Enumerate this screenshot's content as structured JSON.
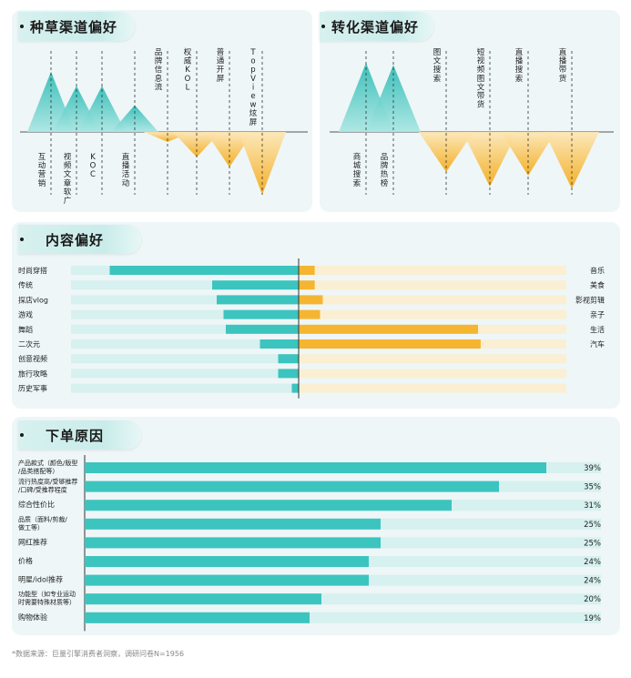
{
  "sections": {
    "seeding": {
      "title": "种草渠道偏好"
    },
    "conversion": {
      "title": "转化渠道偏好"
    },
    "content": {
      "title": "内容偏好"
    },
    "order": {
      "title": "下单原因"
    }
  },
  "footer": "*数据来源：巨量引擎消费者洞察，调研问卷N=1956",
  "chart_data": [
    {
      "type": "area",
      "title": "种草渠道偏好",
      "categories": [
        "互动营销",
        "视频文章软广",
        "KOC",
        "直播活动",
        "品牌信息流",
        "权威KOL",
        "普通开屏",
        "TopView炫屏"
      ],
      "values": [
        0.72,
        0.55,
        0.55,
        0.32,
        -0.12,
        -0.3,
        -0.42,
        -0.75
      ],
      "categories_display": [
        "互动营销",
        "视频文章软广",
        "KOC",
        "直播活动",
        "品牌信息流",
        "权威KOL",
        "普通开屏",
        "TopView炫屏"
      ],
      "colors": {
        "positive": "#3cc4bf",
        "negative": "#f5b531"
      }
    },
    {
      "type": "area",
      "title": "转化渠道偏好",
      "categories": [
        "商城搜索",
        "品牌热榜",
        "图文搜索",
        "短视频图文带货",
        "直播搜索",
        "直播带货"
      ],
      "values": [
        0.95,
        0.92,
        -0.55,
        -0.75,
        -0.6,
        -0.78
      ],
      "categories_display": [
        "商城搜索",
        "品牌热榜",
        "图文搜索",
        "短视频图文带货",
        "直播搜索",
        "直播带货"
      ],
      "colors": {
        "positive": "#3cc4bf",
        "negative": "#f5b531"
      }
    },
    {
      "type": "bar",
      "title": "内容偏好",
      "left_series": {
        "categories": [
          "时尚穿搭",
          "传统",
          "探店vlog",
          "游戏",
          "舞蹈",
          "二次元",
          "创意视频",
          "旅行攻略",
          "历史军事"
        ],
        "values": [
          0.83,
          0.38,
          0.36,
          0.33,
          0.32,
          0.17,
          0.09,
          0.09,
          0.03
        ],
        "color": "#3cc4bf"
      },
      "right_series": {
        "categories": [
          "音乐",
          "美食",
          "影视剪辑",
          "亲子",
          "生活",
          "汽车",
          "",
          "",
          ""
        ],
        "values": [
          0.06,
          0.06,
          0.09,
          0.08,
          0.67,
          0.68,
          0,
          0,
          0
        ],
        "color": "#f5b531"
      }
    },
    {
      "type": "bar",
      "title": "下单原因",
      "categories": [
        "产品款式（颜色/版型/品类配搭等）",
        "流行热度高/受推荐高/口碑/受推荐程度",
        "综合性价比",
        "品质（面料/做工等）",
        "网红推荐",
        "价格",
        "明星/idol推荐",
        "功能型（如专业运动时需要特殊材质等）",
        "购物体验"
      ],
      "categories_display": [
        [
          "产品款式（颜色/版型",
          "/品类搭配等）"
        ],
        [
          "流行热度高/受够推荐",
          "/口碑/受推荐程度"
        ],
        [
          "综合性价比"
        ],
        [
          "品质（面料/剪裁/",
          "做工等）"
        ],
        [
          "网红推荐"
        ],
        [
          "价格"
        ],
        [
          "明星/idol推荐"
        ],
        [
          "功能型（如专业运动",
          "时需要特殊材质等）"
        ],
        [
          "购物体验"
        ]
      ],
      "values": [
        39,
        35,
        31,
        25,
        25,
        24,
        24,
        20,
        19
      ],
      "labels": [
        "39%",
        "35%",
        "31%",
        "25%",
        "25%",
        "24%",
        "24%",
        "20%",
        "19%"
      ],
      "unit": "%",
      "xlim": [
        0,
        40
      ],
      "color": "#3cc4bf"
    }
  ]
}
